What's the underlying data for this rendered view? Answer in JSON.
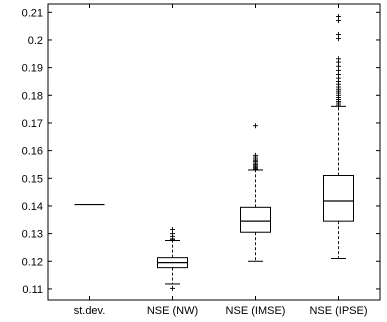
{
  "chart_data": {
    "type": "box",
    "title": "",
    "xlabel": "",
    "ylabel": "",
    "ylim": [
      0.106,
      0.213
    ],
    "yticks": [
      0.11,
      0.12,
      0.13,
      0.14,
      0.15,
      0.16,
      0.17,
      0.18,
      0.19,
      0.2,
      0.21
    ],
    "ytick_labels": [
      "0.11",
      "0.12",
      "0.13",
      "0.14",
      "0.15",
      "0.16",
      "0.17",
      "0.18",
      "0.19",
      "0.2",
      "0.21"
    ],
    "categories": [
      "st.dev.",
      "NSE (NW)",
      "NSE (IMSE)",
      "NSE (IPSE)"
    ],
    "boxes": [
      {
        "name": "st.dev.",
        "min": 0.1405,
        "q1": 0.1405,
        "median": 0.1405,
        "q3": 0.1405,
        "max": 0.1405,
        "outliers": []
      },
      {
        "name": "NSE (NW)",
        "min": 0.1118,
        "q1": 0.1177,
        "median": 0.1195,
        "q3": 0.1213,
        "max": 0.1275,
        "outliers": [
          0.1102,
          0.1277,
          0.1281,
          0.129,
          0.13,
          0.1315
        ]
      },
      {
        "name": "NSE (IMSE)",
        "min": 0.12,
        "q1": 0.1305,
        "median": 0.1345,
        "q3": 0.1395,
        "max": 0.153,
        "outliers": [
          0.1533,
          0.1537,
          0.1541,
          0.1545,
          0.155,
          0.1555,
          0.156,
          0.1565,
          0.157,
          0.1577,
          0.1583,
          0.169
        ]
      },
      {
        "name": "NSE (IPSE)",
        "min": 0.121,
        "q1": 0.1345,
        "median": 0.1418,
        "q3": 0.151,
        "max": 0.176,
        "outliers": [
          0.1765,
          0.1772,
          0.1778,
          0.1785,
          0.1792,
          0.18,
          0.1808,
          0.1815,
          0.1822,
          0.183,
          0.184,
          0.185,
          0.1862,
          0.1875,
          0.189,
          0.1905,
          0.192,
          0.1932,
          0.2005,
          0.202,
          0.207,
          0.2085
        ]
      }
    ]
  }
}
